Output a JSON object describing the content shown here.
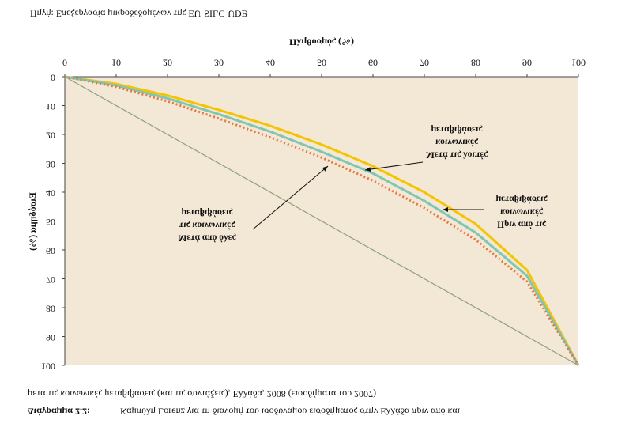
{
  "chart_data": {
    "type": "line",
    "title_label": "Διάγραμμα 2.2:",
    "title": [
      "Καμπύλη Lorenz για τη διανομή του ισοδύναμου εισοδήματος στην Ελλάδα πριν από και",
      "μετά τις κοινωνικές μεταβιβάσεις (και τις συντάξεις), Ελλάδα, 2008 (εισοδήματα του 2007)"
    ],
    "source": "Πηγή: Επεξεργασία μικροδεδομένων της EU-SILC-UDB",
    "xlabel": "Πληθυσμός (%)",
    "ylabel": "Εισόδημα (%)",
    "x": [
      0,
      10,
      20,
      30,
      40,
      50,
      60,
      70,
      80,
      90,
      100
    ],
    "series": [
      {
        "color": "#f5c400",
        "values": [
          0,
          2.5,
          6.5,
          11.5,
          17,
          23.5,
          31,
          40,
          51,
          67,
          100
        ]
      },
      {
        "color": "#7fc6b4",
        "values": [
          0,
          3,
          7.5,
          13,
          19,
          26,
          33.5,
          43,
          54,
          69,
          100
        ]
      },
      {
        "color": "#e8773a",
        "values": [
          0,
          3.5,
          8.5,
          14.5,
          21,
          28,
          36,
          45.5,
          56.5,
          71,
          100
        ]
      }
    ],
    "annotations": [
      [
        "Πριν από τις",
        "κοινωνικές",
        "μεταβιβάσεις"
      ],
      [
        "Μετά τις λοιπές",
        "κοινωνικές",
        "μεταβιβάσεις"
      ],
      [
        "Μετά από όλες",
        "τις κοινωνικές",
        "μεταβιβάσεις"
      ]
    ],
    "xlim": [
      0,
      100
    ],
    "ylim": [
      0,
      100
    ],
    "xticks": [
      0,
      10,
      20,
      30,
      40,
      50,
      60,
      70,
      80,
      90,
      100
    ],
    "yticks": [
      0,
      10,
      20,
      30,
      40,
      50,
      60,
      70,
      80,
      90,
      100
    ]
  }
}
